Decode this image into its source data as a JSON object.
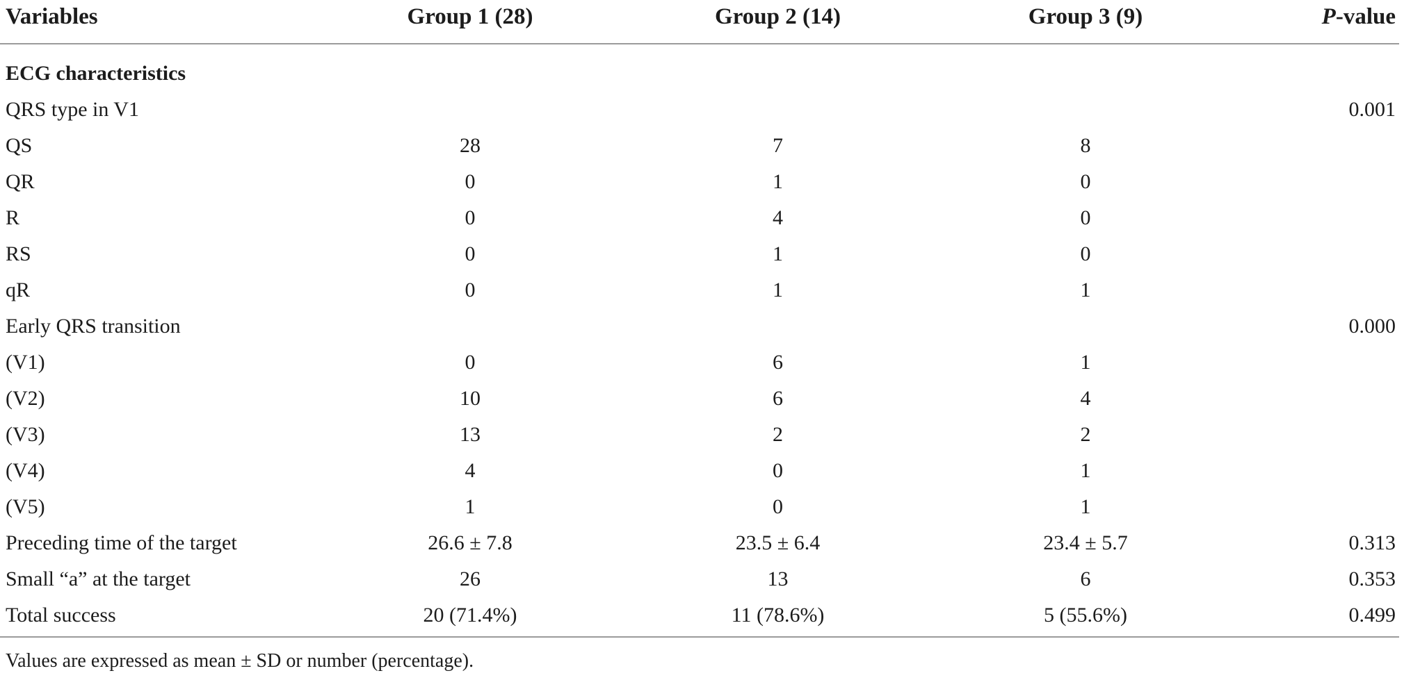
{
  "table": {
    "columns": {
      "variables": "Variables",
      "group1": "Group 1 (28)",
      "group2": "Group 2 (14)",
      "group3": "Group 3 (9)",
      "p_italic": "P",
      "p_rest": "-value"
    },
    "rows": [
      {
        "label": "ECG characteristics",
        "group1": "",
        "group2": "",
        "group3": "",
        "p": ""
      },
      {
        "label": "QRS type in V1",
        "group1": "",
        "group2": "",
        "group3": "",
        "p": "0.001"
      },
      {
        "label": "QS",
        "group1": "28",
        "group2": "7",
        "group3": "8",
        "p": ""
      },
      {
        "label": "QR",
        "group1": "0",
        "group2": "1",
        "group3": "0",
        "p": ""
      },
      {
        "label": "R",
        "group1": "0",
        "group2": "4",
        "group3": "0",
        "p": ""
      },
      {
        "label": "RS",
        "group1": "0",
        "group2": "1",
        "group3": "0",
        "p": ""
      },
      {
        "label": "qR",
        "group1": "0",
        "group2": "1",
        "group3": "1",
        "p": ""
      },
      {
        "label": "Early QRS transition",
        "group1": "",
        "group2": "",
        "group3": "",
        "p": "0.000"
      },
      {
        "label": "(V1)",
        "group1": "0",
        "group2": "6",
        "group3": "1",
        "p": ""
      },
      {
        "label": "(V2)",
        "group1": "10",
        "group2": "6",
        "group3": "4",
        "p": ""
      },
      {
        "label": "(V3)",
        "group1": "13",
        "group2": "2",
        "group3": "2",
        "p": ""
      },
      {
        "label": "(V4)",
        "group1": "4",
        "group2": "0",
        "group3": "1",
        "p": ""
      },
      {
        "label": "(V5)",
        "group1": "1",
        "group2": "0",
        "group3": "1",
        "p": ""
      },
      {
        "label": "Preceding time of the target",
        "group1": "26.6 ± 7.8",
        "group2": "23.5 ± 6.4",
        "group3": "23.4 ± 5.7",
        "p": "0.313"
      },
      {
        "label": "Small “a” at the target",
        "group1": "26",
        "group2": "13",
        "group3": "6",
        "p": "0.353"
      },
      {
        "label": "Total success",
        "group1": "20 (71.4%)",
        "group2": "11 (78.6%)",
        "group3": "5 (55.6%)",
        "p": "0.499"
      }
    ],
    "footnote": "Values are expressed as mean ± SD or number (percentage)."
  },
  "colors": {
    "text": "#1c1c1c",
    "rule": "#9b9b9b",
    "background": "#ffffff"
  }
}
